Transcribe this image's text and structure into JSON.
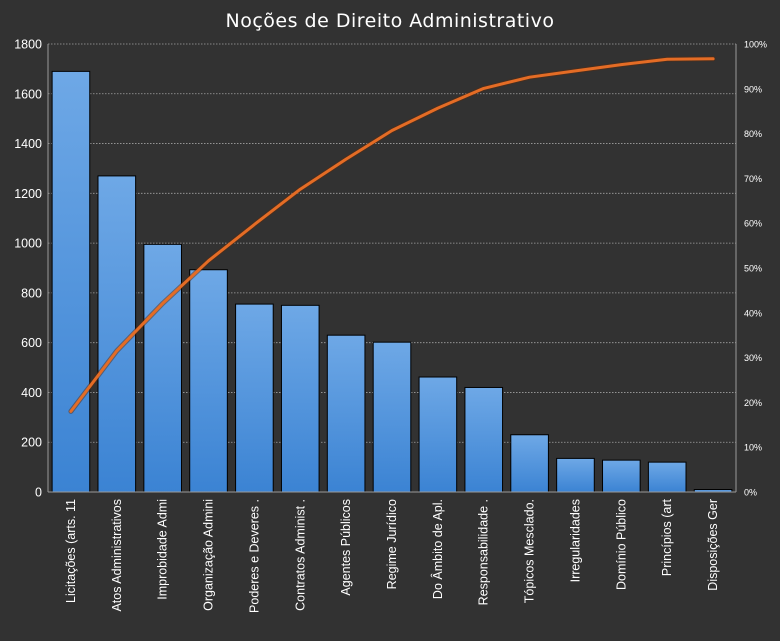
{
  "chart_data": {
    "type": "bar",
    "title": "Noções de Direito Administrativo",
    "categories": [
      "Licitações (arts. 11",
      "Atos Administrativos",
      "Improbidade  Admi",
      "Organização Admini",
      "Poderes e Deveres .",
      "Contratos Administ .",
      "Agentes Públicos",
      "Regime Jurídico",
      "Do Âmbito de Apl.",
      "Responsabilidade .",
      "Tópicos Mesclado.",
      "Irregularidades",
      "Domínio Público",
      "Princípios (art",
      "Disposições Ger"
    ],
    "series": [
      {
        "values": [
          1690,
          1270,
          995,
          893,
          755,
          750,
          630,
          602,
          462,
          420,
          230,
          135,
          128,
          120,
          10
        ]
      },
      {
        "axis": "right",
        "line_color": "#e46c25",
        "values": [
          18.0,
          31.5,
          42.1,
          51.6,
          59.7,
          67.6,
          74.3,
          80.7,
          85.7,
          90.1,
          92.6,
          94.0,
          95.4,
          96.6,
          96.7
        ]
      }
    ],
    "ylim": [
      0,
      1800
    ],
    "yticks": [
      "0",
      "200",
      "400",
      "600",
      "800",
      "1000",
      "1200",
      "1400",
      "1600",
      "1800"
    ],
    "y2lim": [
      0,
      100
    ],
    "y2ticks": [
      "0%",
      "10%",
      "20%",
      "30%",
      "40%",
      "50%",
      "60%",
      "70%",
      "80%",
      "90%",
      "100%"
    ],
    "grid": true,
    "colors": {
      "background": "#323232",
      "bar_top": "#6ea8e6",
      "bar_bottom": "#3b83d3",
      "bar_border": "#000000",
      "line": "#e46c25",
      "grid": "#bfbfbf",
      "text": "#ffffff"
    }
  }
}
